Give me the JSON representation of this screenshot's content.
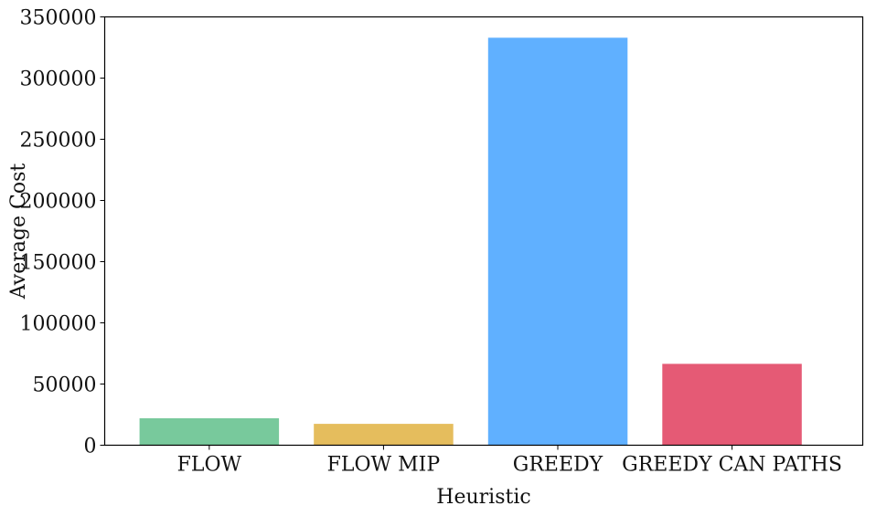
{
  "chart_data": {
    "type": "bar",
    "categories": [
      "FLOW",
      "FLOW_MIP",
      "GREEDY",
      "GREEDY_CAN_PATHS"
    ],
    "category_labels": [
      "FLOW",
      "FLOW MIP",
      "GREEDY",
      "GREEDY CAN PATHS"
    ],
    "values": [
      22000,
      17500,
      333000,
      66500
    ],
    "colors": [
      "#78c99c",
      "#e5bd5d",
      "#60b0ff",
      "#e55a75"
    ],
    "title": "",
    "xlabel": "Heuristic",
    "ylabel": "Average Cost",
    "ylim": [
      0,
      350000
    ],
    "yticks": [
      0,
      50000,
      100000,
      150000,
      200000,
      250000,
      300000,
      350000
    ],
    "ytick_labels": [
      "0",
      "50000",
      "100000",
      "150000",
      "200000",
      "250000",
      "300000",
      "350000"
    ],
    "grid": false,
    "legend": "none"
  }
}
